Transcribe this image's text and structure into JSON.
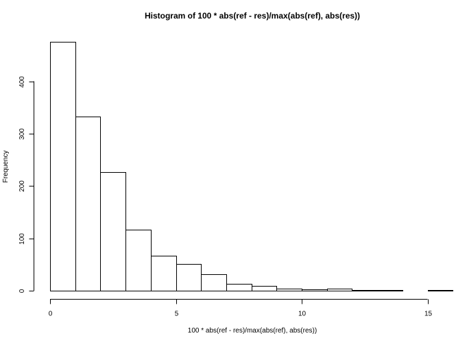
{
  "chart_data": {
    "type": "bar",
    "subtype": "histogram",
    "title": "Histogram of 100 * abs(ref - res)/max(abs(ref), abs(res))",
    "xlabel": "100 * abs(ref - res)/max(abs(ref), abs(res))",
    "ylabel": "Frequency",
    "bins": [
      {
        "start": 0,
        "end": 1,
        "count": 475
      },
      {
        "start": 1,
        "end": 2,
        "count": 333
      },
      {
        "start": 2,
        "end": 3,
        "count": 226
      },
      {
        "start": 3,
        "end": 4,
        "count": 116
      },
      {
        "start": 4,
        "end": 5,
        "count": 67
      },
      {
        "start": 5,
        "end": 6,
        "count": 51
      },
      {
        "start": 6,
        "end": 7,
        "count": 32
      },
      {
        "start": 7,
        "end": 8,
        "count": 13
      },
      {
        "start": 8,
        "end": 9,
        "count": 9
      },
      {
        "start": 9,
        "end": 10,
        "count": 4
      },
      {
        "start": 10,
        "end": 11,
        "count": 2
      },
      {
        "start": 11,
        "end": 12,
        "count": 4
      },
      {
        "start": 12,
        "end": 13,
        "count": 1
      },
      {
        "start": 13,
        "end": 14,
        "count": 1
      },
      {
        "start": 14,
        "end": 15,
        "count": 0
      },
      {
        "start": 15,
        "end": 16,
        "count": 1
      }
    ],
    "xlim": [
      0,
      16
    ],
    "ylim": [
      0,
      475
    ],
    "x_ticks": [
      0,
      5,
      10,
      15
    ],
    "y_ticks": [
      0,
      100,
      200,
      300,
      400
    ],
    "grid": false
  }
}
